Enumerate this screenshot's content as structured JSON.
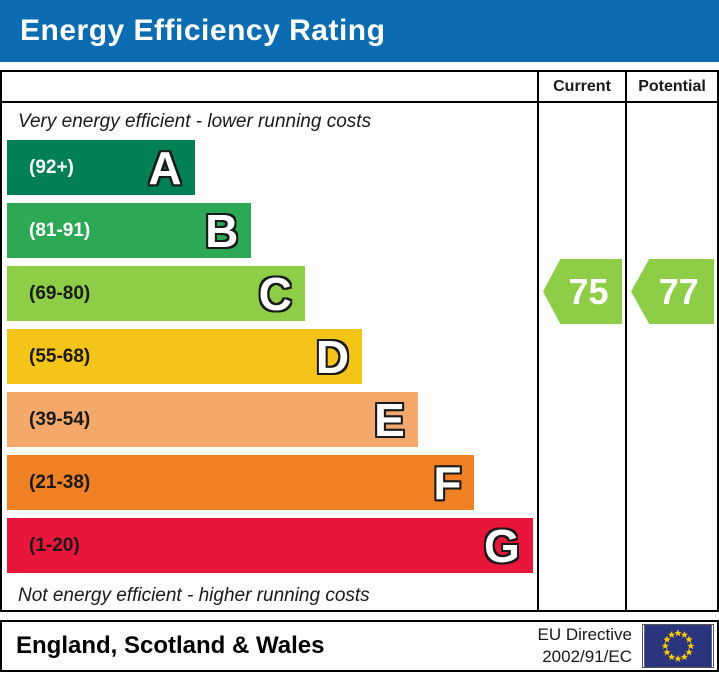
{
  "title": "Energy Efficiency Rating",
  "table": {
    "current_header": "Current",
    "potential_header": "Potential"
  },
  "captions": {
    "top": "Very energy efficient - lower running costs",
    "bottom": "Not energy efficient - higher running costs"
  },
  "chart_data": {
    "type": "bar",
    "title": "Energy Efficiency Rating",
    "orientation": "horizontal",
    "bands": [
      {
        "letter": "A",
        "range": "(92+)",
        "min": 92,
        "max": 100,
        "color": "#008054",
        "range_text_color": "#ffffff",
        "width_pct": "35.4%"
      },
      {
        "letter": "B",
        "range": "(81-91)",
        "min": 81,
        "max": 91,
        "color": "#2BA954",
        "range_text_color": "#ffffff",
        "width_pct": "46.1%"
      },
      {
        "letter": "C",
        "range": "(69-80)",
        "min": 69,
        "max": 80,
        "color": "#8DCE46",
        "range_text_color": "#1a1a1a",
        "width_pct": "56.2%"
      },
      {
        "letter": "D",
        "range": "(55-68)",
        "min": 55,
        "max": 68,
        "color": "#F5C419",
        "range_text_color": "#1a1a1a",
        "width_pct": "67.0%"
      },
      {
        "letter": "E",
        "range": "(39-54)",
        "min": 39,
        "max": 54,
        "color": "#F4A96B",
        "range_text_color": "#1a1a1a",
        "width_pct": "77.5%"
      },
      {
        "letter": "F",
        "range": "(21-38)",
        "min": 21,
        "max": 38,
        "color": "#EF8023",
        "range_text_color": "#1a1a1a",
        "width_pct": "88.2%"
      },
      {
        "letter": "G",
        "range": "(1-20)",
        "min": 1,
        "max": 20,
        "color": "#E9153B",
        "range_text_color": "#1a1a1a",
        "width_pct": "99.2%"
      }
    ],
    "current": {
      "value": "75",
      "band": "C",
      "color": "#8DCE46"
    },
    "potential": {
      "value": "77",
      "band": "C",
      "color": "#8DCE46"
    }
  },
  "footer": {
    "region": "England, Scotland & Wales",
    "directive_line1": "EU Directive",
    "directive_line2": "2002/91/EC"
  },
  "colors": {
    "title_bar_blue": "#0B6CB1",
    "eu_flag_blue": "#2A357E",
    "eu_star_yellow": "#FFCC00"
  }
}
